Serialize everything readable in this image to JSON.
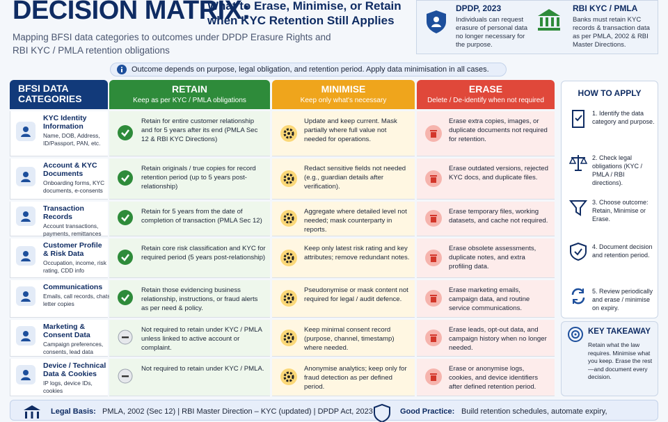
{
  "header": {
    "title_main": "DECISION MATRIX:",
    "title_rest": "What to Erase, Minimise, or Retain when KYC Retention Still Applies",
    "subtitle": "Mapping BFSI data categories to outcomes under DPDP Erasure Rights and RBI KYC / PMLA retention obligations"
  },
  "laws": [
    {
      "title": "DPDP, 2023",
      "text": "Individuals can request erasure of personal data no longer necessary for the purpose."
    },
    {
      "title": "RBI KYC / PMLA",
      "text": "Banks must retain KYC records & transaction data as per PMLA, 2002 & RBI Master Directions."
    }
  ],
  "note": "Outcome depends on purpose, legal obligation, and retention period. Apply data minimisation in all cases.",
  "table": {
    "columns": [
      {
        "title": "BFSI DATA CATEGORIES"
      },
      {
        "title": "RETAIN",
        "subtitle": "Keep as per KYC / PMLA obligations"
      },
      {
        "title": "MINIMISE",
        "subtitle": "Keep only what's necessary"
      },
      {
        "title": "ERASE",
        "subtitle": "Delete / De-identify when not required"
      }
    ],
    "rows": [
      {
        "category": "KYC Identity Information",
        "examples": "Name, DOB, Address, ID/Passport, PAN, etc.",
        "retain": "Retain for entire customer relationship and for 5 years after its end (PMLA Sec 12 & RBI KYC Directions)",
        "minimise": "Update and keep current. Mask partially where full value not needed for operations.",
        "erase": "Erase extra copies, images, or duplicate documents not required for retention."
      },
      {
        "category": "Account & KYC Documents",
        "examples": "Onboarding forms, KYC documents, e-consents",
        "retain": "Retain originals / true copies for record retention period (up to 5 years post-relationship)",
        "minimise": "Redact sensitive fields not needed (e.g., guardian details after verification).",
        "erase": "Erase outdated versions, rejected KYC docs, and duplicate files."
      },
      {
        "category": "Transaction Records",
        "examples": "Account transactions, payments, remittances",
        "retain": "Retain for 5 years from the date of completion of transaction (PMLA Sec 12)",
        "minimise": "Aggregate where detailed level not needed; mask counterparty in reports.",
        "erase": "Erase temporary files, working datasets, and cache not required."
      },
      {
        "category": "Customer Profile & Risk Data",
        "examples": "Occupation, income, risk rating, CDD info",
        "retain": "Retain core risk classification and KYC for required period (5 years post-relationship)",
        "minimise": "Keep only latest risk rating and key attributes; remove redundant notes.",
        "erase": "Erase obsolete assessments, duplicate notes, and extra profiling data."
      },
      {
        "category": "Communications",
        "examples": "Emails, call records, chats, letter copies",
        "retain": "Retain those evidencing business relationship, instructions, or fraud alerts as per need & policy.",
        "minimise": "Pseudonymise or mask content not required for legal / audit defence.",
        "erase": "Erase marketing emails, campaign data, and routine service communications."
      },
      {
        "category": "Marketing & Consent Data",
        "examples": "Campaign preferences, consents, lead data",
        "retain": "Not required to retain under KYC / PMLA unless linked to active account or complaint.",
        "minimise": "Keep minimal consent record (purpose, channel, timestamp) where needed.",
        "erase": "Erase leads, opt-out data, and campaign history when no longer needed."
      },
      {
        "category": "Device / Technical Data & Cookies",
        "examples": "IP logs, device IDs, cookies",
        "retain": "Not required to retain under KYC / PMLA.",
        "minimise": "Anonymise analytics; keep only for fraud detection as per defined period.",
        "erase": "Erase or anonymise logs, cookies, and device identifiers after defined retention period."
      }
    ]
  },
  "how_to_apply": {
    "title": "HOW TO APPLY",
    "steps": [
      "1. Identify the data category and purpose.",
      "2. Check legal obligations (KYC / PMLA / RBI directions).",
      "3. Choose outcome: Retain, Minimise or Erase.",
      "4. Document decision and retention period.",
      "5. Review periodically and erase / minimise on expiry."
    ]
  },
  "takeaway": {
    "title": "KEY TAKEAWAY",
    "text": "Retain what the law requires. Minimise what you keep. Erase the rest—and document every decision."
  },
  "footer": {
    "legal_label": "Legal Basis:",
    "legal_text": "PMLA, 2002 (Sec 12) | RBI Master Direction – KYC (updated) | DPDP Act, 2023",
    "practice_label": "Good Practice:",
    "practice_text": "Build retention schedules, automate expiry,"
  }
}
